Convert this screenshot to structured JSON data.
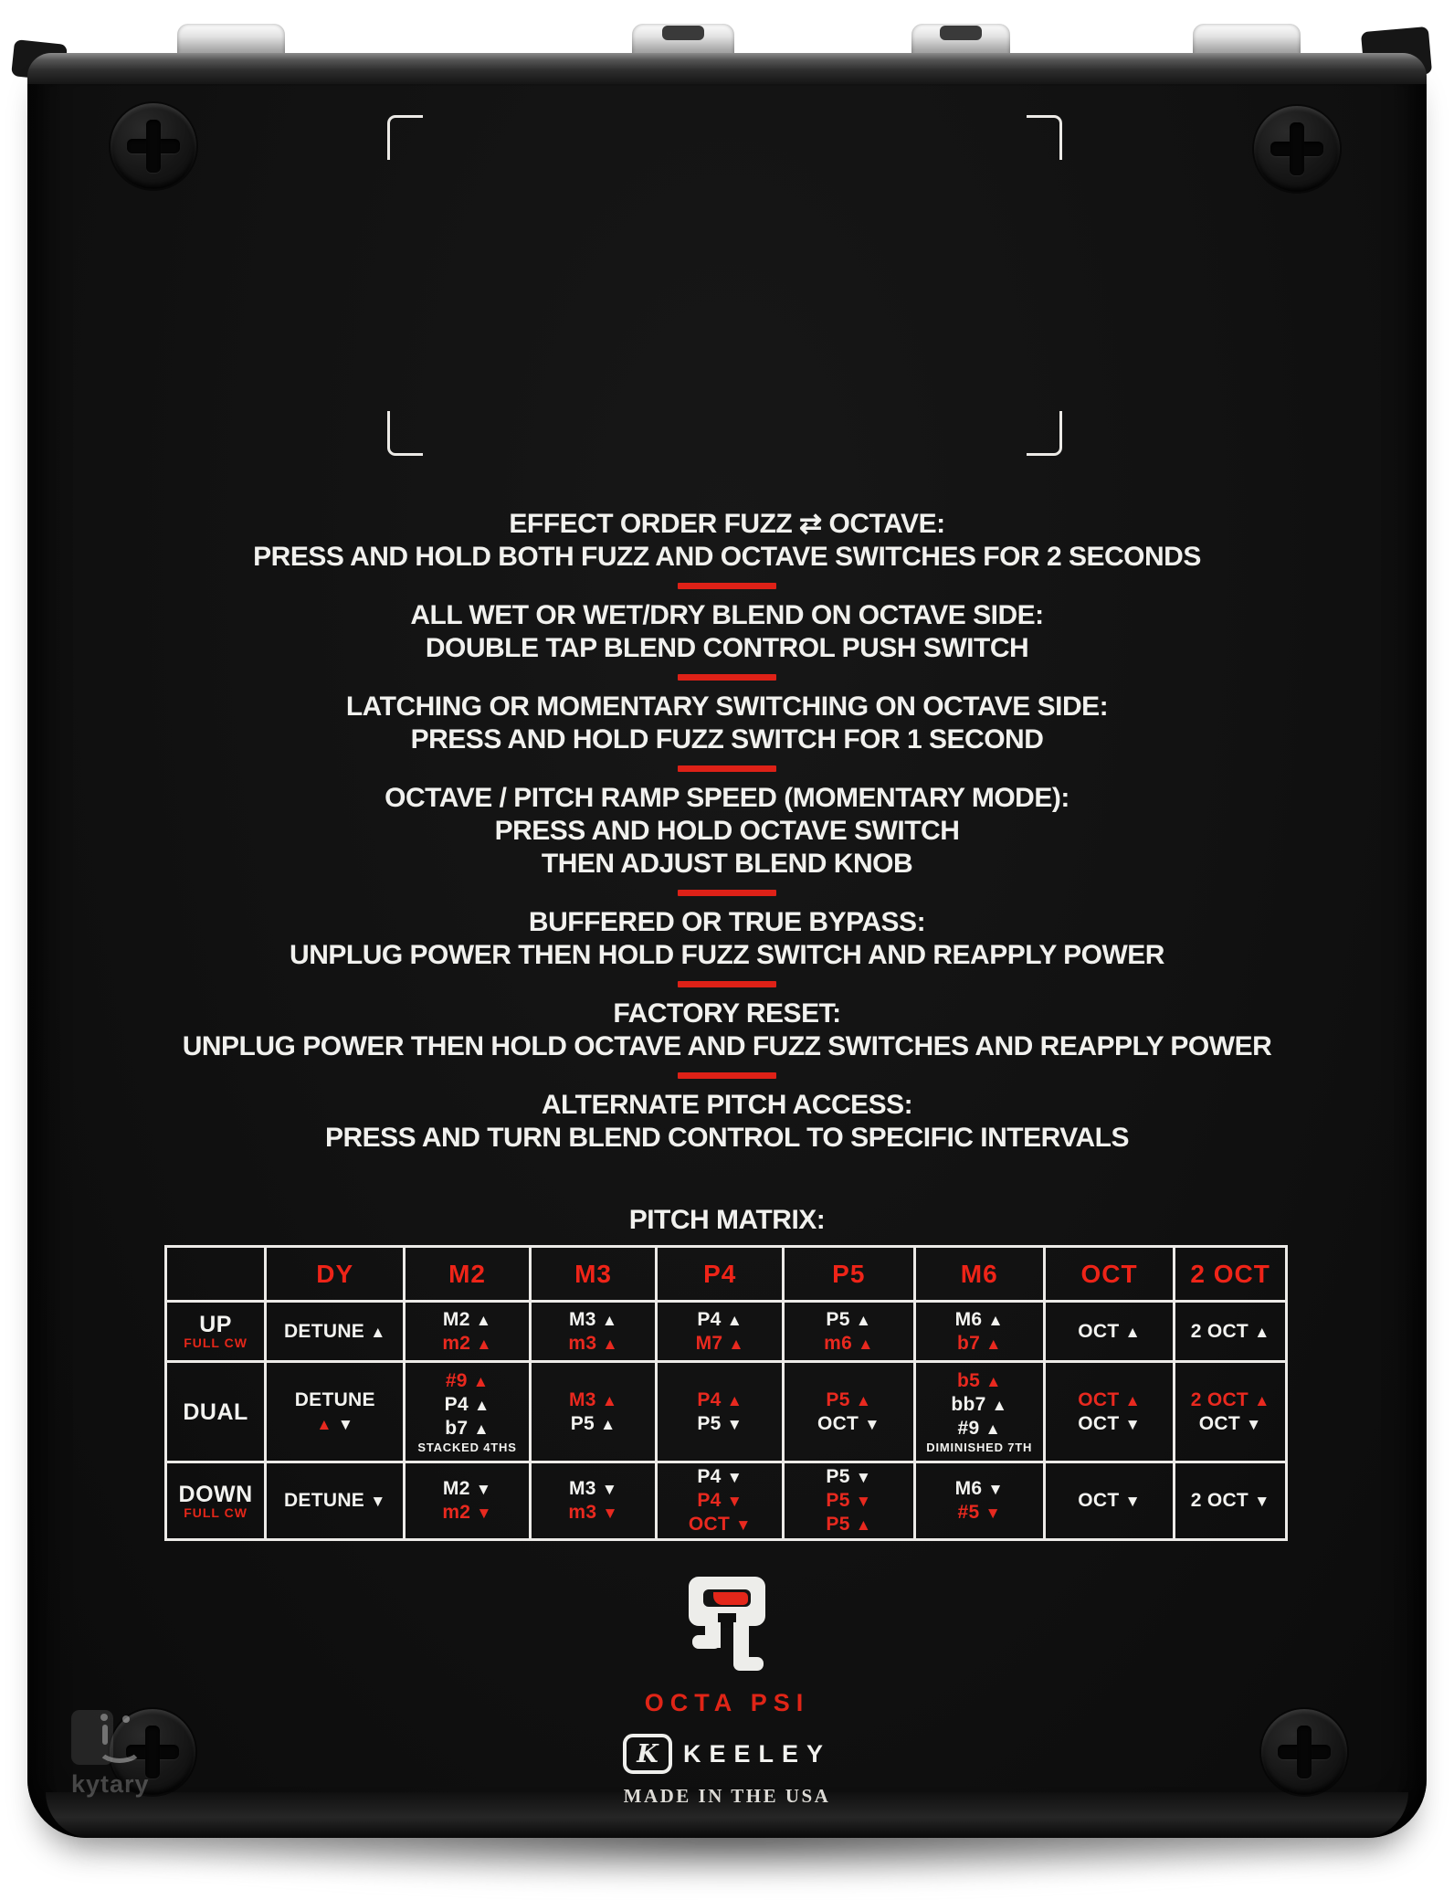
{
  "device": {
    "model_logo": "OCTA PSI",
    "brand": "KEELEY",
    "brand_k": "K",
    "made_in": "MADE IN THE USA",
    "watermark": "kytary",
    "pitch_matrix_title": "PITCH MATRIX:"
  },
  "colors": {
    "accent_red": "#e8291f",
    "silkscreen_white": "#f2f2ef",
    "enclosure_black": "#111111",
    "background": "#ffffff"
  },
  "instructions": [
    {
      "title": "EFFECT ORDER FUZZ ⇄ OCTAVE:",
      "lines": [
        "PRESS AND HOLD BOTH FUZZ AND OCTAVE SWITCHES FOR 2 SECONDS"
      ]
    },
    {
      "title": "ALL WET OR WET/DRY BLEND ON OCTAVE SIDE:",
      "lines": [
        "DOUBLE TAP BLEND CONTROL PUSH SWITCH"
      ]
    },
    {
      "title": "LATCHING OR MOMENTARY SWITCHING ON OCTAVE SIDE:",
      "lines": [
        "PRESS AND HOLD FUZZ SWITCH FOR 1 SECOND"
      ]
    },
    {
      "title": "OCTAVE / PITCH RAMP SPEED (MOMENTARY MODE):",
      "lines": [
        "PRESS AND HOLD OCTAVE SWITCH",
        "THEN ADJUST BLEND KNOB"
      ]
    },
    {
      "title": "BUFFERED OR TRUE BYPASS:",
      "lines": [
        "UNPLUG POWER THEN HOLD FUZZ SWITCH AND REAPPLY POWER"
      ]
    },
    {
      "title": "FACTORY RESET:",
      "lines": [
        "UNPLUG POWER THEN HOLD OCTAVE AND FUZZ SWITCHES AND REAPPLY POWER"
      ]
    },
    {
      "title": "ALTERNATE PITCH ACCESS:",
      "lines": [
        "PRESS AND TURN BLEND CONTROL TO SPECIFIC INTERVALS"
      ]
    }
  ],
  "pitch_matrix": {
    "columns": [
      "",
      "DY",
      "M2",
      "M3",
      "P4",
      "P5",
      "M6",
      "OCT",
      "2 OCT"
    ],
    "rows": [
      {
        "label": "UP",
        "sublabel": "FULL CW",
        "cells": [
          [
            [
              [
                "DETUNE ▲",
                "w"
              ]
            ]
          ],
          [
            [
              [
                "M2 ▲",
                "w"
              ]
            ],
            [
              [
                "m2 ▲",
                "r"
              ]
            ]
          ],
          [
            [
              [
                "M3 ▲",
                "w"
              ]
            ],
            [
              [
                "m3 ▲",
                "r"
              ]
            ]
          ],
          [
            [
              [
                "P4 ▲",
                "w"
              ]
            ],
            [
              [
                "M7 ▲",
                "r"
              ]
            ]
          ],
          [
            [
              [
                "P5 ▲",
                "w"
              ]
            ],
            [
              [
                "m6 ▲",
                "r"
              ]
            ]
          ],
          [
            [
              [
                "M6 ▲",
                "w"
              ]
            ],
            [
              [
                "b7 ▲",
                "r"
              ]
            ]
          ],
          [
            [
              [
                "OCT ▲",
                "w"
              ]
            ]
          ],
          [
            [
              [
                "2 OCT ▲",
                "w"
              ]
            ]
          ]
        ]
      },
      {
        "label": "DUAL",
        "sublabel": "",
        "cells": [
          [
            [
              [
                "DETUNE",
                "w"
              ]
            ],
            [
              [
                "▲ ",
                "r"
              ],
              [
                "▼",
                "w"
              ]
            ]
          ],
          [
            [
              [
                "#9 ▲",
                "r"
              ]
            ],
            [
              [
                "P4 ▲",
                "w"
              ]
            ],
            [
              [
                "b7 ▲",
                "w"
              ]
            ],
            [
              [
                "STACKED 4THS",
                "sw"
              ]
            ]
          ],
          [
            [
              [
                "M3 ▲",
                "r"
              ]
            ],
            [
              [
                "P5 ▲",
                "w"
              ]
            ]
          ],
          [
            [
              [
                "P4 ▲",
                "r"
              ]
            ],
            [
              [
                "P5 ▼",
                "w"
              ]
            ]
          ],
          [
            [
              [
                "P5 ▲",
                "r"
              ]
            ],
            [
              [
                "OCT ▼",
                "w"
              ]
            ]
          ],
          [
            [
              [
                "b5 ▲",
                "r"
              ]
            ],
            [
              [
                "bb7 ▲",
                "w"
              ]
            ],
            [
              [
                "#9 ▲",
                "w"
              ]
            ],
            [
              [
                "DIMINISHED 7TH",
                "sw"
              ]
            ]
          ],
          [
            [
              [
                "OCT ▲",
                "r"
              ]
            ],
            [
              [
                "OCT ▼",
                "w"
              ]
            ]
          ],
          [
            [
              [
                "2 OCT ▲",
                "r"
              ]
            ],
            [
              [
                "OCT ▼",
                "w"
              ]
            ]
          ]
        ]
      },
      {
        "label": "DOWN",
        "sublabel": "FULL CW",
        "cells": [
          [
            [
              [
                "DETUNE ▼",
                "w"
              ]
            ]
          ],
          [
            [
              [
                "M2 ▼",
                "w"
              ]
            ],
            [
              [
                "m2 ▼",
                "r"
              ]
            ]
          ],
          [
            [
              [
                "M3 ▼",
                "w"
              ]
            ],
            [
              [
                "m3 ▼",
                "r"
              ]
            ]
          ],
          [
            [
              [
                "P4 ▼",
                "w"
              ]
            ],
            [
              [
                "P4 ▼",
                "r"
              ]
            ],
            [
              [
                "OCT ▼",
                "r"
              ]
            ]
          ],
          [
            [
              [
                "P5 ▼",
                "w"
              ]
            ],
            [
              [
                "P5 ▼",
                "r"
              ]
            ],
            [
              [
                "P5 ▲",
                "r"
              ]
            ]
          ],
          [
            [
              [
                "M6 ▼",
                "w"
              ]
            ],
            [
              [
                "#5 ▼",
                "r"
              ]
            ]
          ],
          [
            [
              [
                "OCT ▼",
                "w"
              ]
            ]
          ],
          [
            [
              [
                "2 OCT ▼",
                "w"
              ]
            ]
          ]
        ]
      }
    ]
  }
}
